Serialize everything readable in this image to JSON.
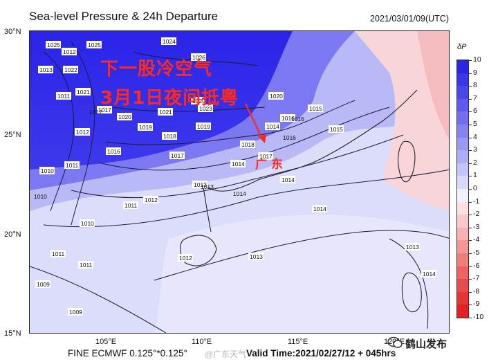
{
  "header": {
    "title": "Sea-level Pressure & 24h Departure",
    "datetime": "2021/03/01/09(UTC)"
  },
  "axes": {
    "lat_labels": [
      "30°N",
      "25°N",
      "20°N",
      "15°N"
    ],
    "lon_labels": [
      "105°E",
      "110°E",
      "115°E",
      "120°E"
    ]
  },
  "annotation": {
    "line1": "下一股冷空气",
    "line2": "3月1日夜间抵粤",
    "place": "广 东",
    "color": "#ff2a1a"
  },
  "isobars": [
    "1025",
    "1024",
    "1013",
    "1012",
    "1022",
    "1025",
    "1026",
    "1021",
    "1011",
    "1017",
    "1020",
    "1021",
    "1020",
    "1023",
    "1016",
    "1014",
    "1019",
    "1019",
    "1018",
    "1017",
    "1015",
    "1015",
    "1014",
    "1012",
    "1016",
    "1011",
    "1010",
    "1016",
    "1017",
    "1014",
    "1014",
    "1010",
    "1013",
    "1011",
    "1012",
    "1014",
    "1010",
    "1013",
    "1013",
    "1011",
    "1012",
    "1011",
    "1009",
    "1009",
    "1014",
    "1020",
    "1016",
    "1018",
    "1012",
    "1013"
  ],
  "colorbar": {
    "title": "δP",
    "labels": [
      "10",
      "9",
      "8",
      "7",
      "6",
      "5",
      "4",
      "3",
      "2",
      "1",
      "0",
      "-1",
      "-2",
      "-3",
      "-4",
      "-5",
      "-6",
      "-7",
      "-8",
      "-9",
      "-10"
    ],
    "colors": [
      "#2a24e8",
      "#3b35ea",
      "#4c47ec",
      "#5e5aef",
      "#716ef1",
      "#8583f3",
      "#9998f5",
      "#aeaef8",
      "#c4c4fa",
      "#dad9fc",
      "#f0f0ff",
      "#fde0e0",
      "#fbc9c9",
      "#f8b0b0",
      "#f59696",
      "#f27b7b",
      "#ef6262",
      "#ec4a4a",
      "#e93434",
      "#e62020"
    ]
  },
  "footer": {
    "model": "FINE ECMWF 0.125°*0.125°",
    "valid": "Valid Time:2021/02/27/12 + 045hrs",
    "watermark": "@广东天气",
    "brand": "鹤山发布"
  }
}
